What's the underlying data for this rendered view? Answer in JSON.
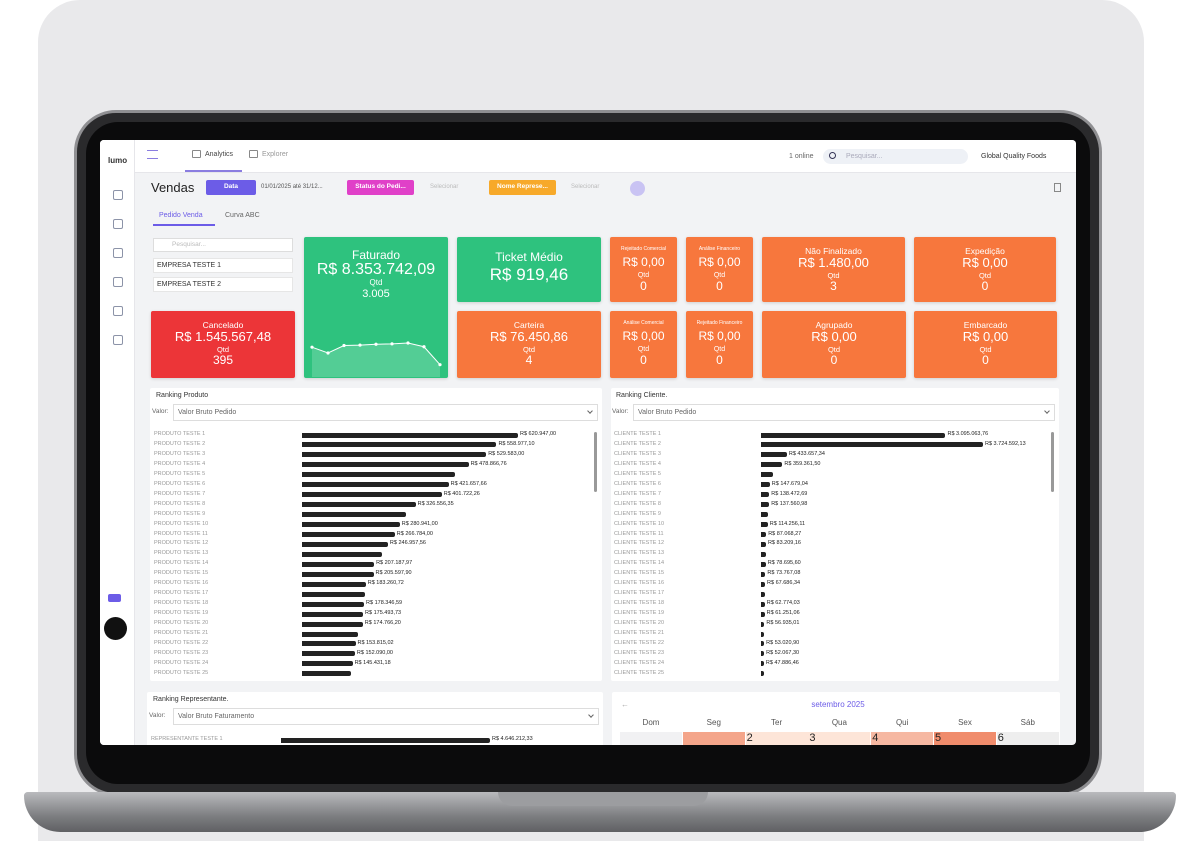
{
  "app": {
    "logo": "lumo",
    "tabs": [
      "Analytics",
      "Explorer"
    ],
    "online": "1 online",
    "search_placeholder": "Pesquisar...",
    "company": "Global Quality Foods"
  },
  "header": {
    "title": "Vendas",
    "filters": [
      {
        "label": "Data",
        "value": "01/01/2025 até 31/12..."
      },
      {
        "label": "Status do Pedi...",
        "value": "Selecionar"
      },
      {
        "label": "Nome Represe...",
        "value": "Selecionar"
      }
    ]
  },
  "subtabs": [
    "Pedido Venda",
    "Curva ABC"
  ],
  "companies": {
    "search_placeholder": "Pesquisar...",
    "items": [
      "EMPRESA TESTE 1",
      "EMPRESA TESTE 2"
    ]
  },
  "cards": [
    {
      "title": "Faturado",
      "value": "R$ 8.353.742,09",
      "qty_label": "Qtd",
      "qty": "3.005",
      "sparkline": [
        310,
        240,
        330,
        335,
        345,
        350,
        360,
        315,
        100
      ]
    },
    {
      "title": "Ticket Médio",
      "value": "R$ 919,46"
    },
    {
      "title": "Rejeitado Comercial",
      "value": "R$ 0,00",
      "qty_label": "Qtd",
      "qty": "0"
    },
    {
      "title": "Análise Financeiro",
      "value": "R$ 0,00",
      "qty_label": "Qtd",
      "qty": "0"
    },
    {
      "title": "Não Finalizado",
      "value": "R$ 1.480,00",
      "qty_label": "Qtd",
      "qty": "3"
    },
    {
      "title": "Expedição",
      "value": "R$ 0,00",
      "qty_label": "Qtd",
      "qty": "0"
    },
    {
      "title": "Cancelado",
      "value": "R$ 1.545.567,48",
      "qty_label": "Qtd",
      "qty": "395"
    },
    {
      "title": "Carteira",
      "value": "R$ 76.450,86",
      "qty_label": "Qtd",
      "qty": "4"
    },
    {
      "title": "Análise Comercial",
      "value": "R$ 0,00",
      "qty_label": "Qtd",
      "qty": "0"
    },
    {
      "title": "Rejeitado Financeiro",
      "value": "R$ 0,00",
      "qty_label": "Qtd",
      "qty": "0"
    },
    {
      "title": "Agrupado",
      "value": "R$ 0,00",
      "qty_label": "Qtd",
      "qty": "0"
    },
    {
      "title": "Embarcado",
      "value": "R$ 0,00",
      "qty_label": "Qtd",
      "qty": "0"
    }
  ],
  "rankings": [
    {
      "title": "Ranking Produto",
      "field_label": "Valor:",
      "field": "Valor Bruto Pedido",
      "rows": [
        {
          "name": "PRODUTO TESTE 1",
          "value": 620947.0,
          "label": "R$ 620.947,00"
        },
        {
          "name": "PRODUTO TESTE 2",
          "value": 558977.1,
          "label": "R$ 558.977,10"
        },
        {
          "name": "PRODUTO TESTE 3",
          "value": 529583.0,
          "label": "R$ 529.583,00"
        },
        {
          "name": "PRODUTO TESTE 4",
          "value": 478866.76,
          "label": "R$ 478.866,76"
        },
        {
          "name": "PRODUTO TESTE 5",
          "value": 440000
        },
        {
          "name": "PRODUTO TESTE 6",
          "value": 421657.66,
          "label": "R$ 421.657,66"
        },
        {
          "name": "PRODUTO TESTE 7",
          "value": 401722.26,
          "label": "R$ 401.722,26"
        },
        {
          "name": "PRODUTO TESTE 8",
          "value": 326556.35,
          "label": "R$ 326.556,35"
        },
        {
          "name": "PRODUTO TESTE 9",
          "value": 300000
        },
        {
          "name": "PRODUTO TESTE 10",
          "value": 280941.0,
          "label": "R$ 280.941,00"
        },
        {
          "name": "PRODUTO TESTE 11",
          "value": 266784.0,
          "label": "R$ 266.784,00"
        },
        {
          "name": "PRODUTO TESTE 12",
          "value": 246957.56,
          "label": "R$ 246.957,56"
        },
        {
          "name": "PRODUTO TESTE 13",
          "value": 230000
        },
        {
          "name": "PRODUTO TESTE 14",
          "value": 207187.97,
          "label": "R$ 207.187,97"
        },
        {
          "name": "PRODUTO TESTE 15",
          "value": 205597.9,
          "label": "R$ 205.597,90"
        },
        {
          "name": "PRODUTO TESTE 16",
          "value": 183260.72,
          "label": "R$ 183.260,72"
        },
        {
          "name": "PRODUTO TESTE 17",
          "value": 180000
        },
        {
          "name": "PRODUTO TESTE 18",
          "value": 178346.59,
          "label": "R$ 178.346,59"
        },
        {
          "name": "PRODUTO TESTE 19",
          "value": 175493.73,
          "label": "R$ 175.493,73"
        },
        {
          "name": "PRODUTO TESTE 20",
          "value": 174766.2,
          "label": "R$ 174.766,20"
        },
        {
          "name": "PRODUTO TESTE 21",
          "value": 160000
        },
        {
          "name": "PRODUTO TESTE 22",
          "value": 153815.02,
          "label": "R$ 153.815,02"
        },
        {
          "name": "PRODUTO TESTE 23",
          "value": 152090.0,
          "label": "R$ 152.090,00"
        },
        {
          "name": "PRODUTO TESTE 24",
          "value": 145431.18,
          "label": "R$ 145.431,18"
        },
        {
          "name": "PRODUTO TESTE 25",
          "value": 140000
        }
      ]
    },
    {
      "title": "Ranking Cliente.",
      "field_label": "Valor:",
      "field": "Valor Bruto Pedido",
      "rows": [
        {
          "name": "CLIENTE TESTE 1",
          "value": 3095063.76,
          "label": "R$ 3.095.063,76"
        },
        {
          "name": "CLIENTE TESTE 2",
          "value": 3724592.13,
          "label": "R$ 3.724.592,13"
        },
        {
          "name": "CLIENTE TESTE 3",
          "value": 433657.34,
          "label": "R$ 433.657,34"
        },
        {
          "name": "CLIENTE TESTE 4",
          "value": 359361.5,
          "label": "R$ 359.361,50"
        },
        {
          "name": "CLIENTE TESTE 5",
          "value": 200000
        },
        {
          "name": "CLIENTE TESTE 6",
          "value": 147679.04,
          "label": "R$ 147.679,04"
        },
        {
          "name": "CLIENTE TESTE 7",
          "value": 138472.69,
          "label": "R$ 138.472,69"
        },
        {
          "name": "CLIENTE TESTE 8",
          "value": 137560.98,
          "label": "R$ 137.560,98"
        },
        {
          "name": "CLIENTE TESTE 9",
          "value": 120000
        },
        {
          "name": "CLIENTE TESTE 10",
          "value": 114256.11,
          "label": "R$ 114.256,11"
        },
        {
          "name": "CLIENTE TESTE 11",
          "value": 87068.27,
          "label": "R$ 87.068,27"
        },
        {
          "name": "CLIENTE TESTE 12",
          "value": 83209.16,
          "label": "R$ 83.209,16"
        },
        {
          "name": "CLIENTE TESTE 13",
          "value": 80000
        },
        {
          "name": "CLIENTE TESTE 14",
          "value": 78695.6,
          "label": "R$ 78.695,60"
        },
        {
          "name": "CLIENTE TESTE 15",
          "value": 73767.08,
          "label": "R$ 73.767,08"
        },
        {
          "name": "CLIENTE TESTE 16",
          "value": 67686.34,
          "label": "R$ 67.686,34"
        },
        {
          "name": "CLIENTE TESTE 17",
          "value": 65000
        },
        {
          "name": "CLIENTE TESTE 18",
          "value": 62774.03,
          "label": "R$ 62.774,03"
        },
        {
          "name": "CLIENTE TESTE 19",
          "value": 61251.06,
          "label": "R$ 61.251,06"
        },
        {
          "name": "CLIENTE TESTE 20",
          "value": 56935.01,
          "label": "R$ 56.935,01"
        },
        {
          "name": "CLIENTE TESTE 21",
          "value": 55000
        },
        {
          "name": "CLIENTE TESTE 22",
          "value": 53020.9,
          "label": "R$ 53.020,90"
        },
        {
          "name": "CLIENTE TESTE 23",
          "value": 52067.3,
          "label": "R$ 52.067,30"
        },
        {
          "name": "CLIENTE TESTE 24",
          "value": 47886.46,
          "label": "R$ 47.886,46"
        },
        {
          "name": "CLIENTE TESTE 25",
          "value": 45000
        }
      ]
    },
    {
      "title": "Ranking Representante.",
      "field_label": "Valor:",
      "field": "Valor Bruto Faturamento",
      "rows": [
        {
          "name": "REPRESENTANTE TESTE 1",
          "value": 4646212.33,
          "label": "R$ 4.646.212,33"
        }
      ]
    }
  ],
  "calendar": {
    "month": "setembro 2025",
    "prev": "←",
    "weekdays": [
      "Dom",
      "Seg",
      "Ter",
      "Qua",
      "Qui",
      "Sex",
      "Sáb"
    ],
    "days": [
      null,
      null,
      2,
      3,
      4,
      5,
      6
    ]
  }
}
